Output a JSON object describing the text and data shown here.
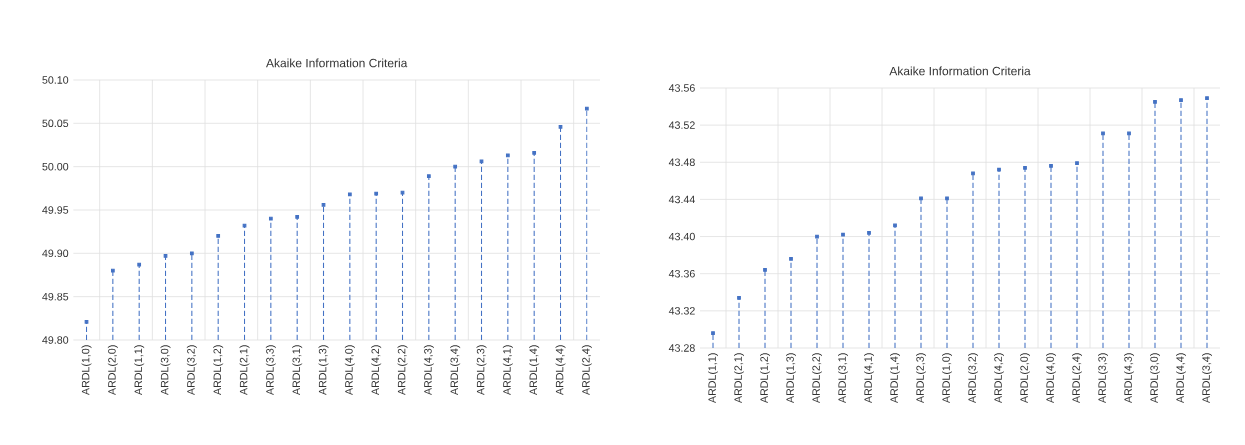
{
  "chart_data": [
    {
      "type": "lollipop",
      "title": "Akaike Information Criteria",
      "categories": [
        "ARDL(1,0)",
        "ARDL(2,0)",
        "ARDL(1,1)",
        "ARDL(3,0)",
        "ARDL(3,2)",
        "ARDL(1,2)",
        "ARDL(2,1)",
        "ARDL(3,3)",
        "ARDL(3,1)",
        "ARDL(1,3)",
        "ARDL(4,0)",
        "ARDL(4,2)",
        "ARDL(2,2)",
        "ARDL(4,3)",
        "ARDL(3,4)",
        "ARDL(2,3)",
        "ARDL(4,1)",
        "ARDL(1,4)",
        "ARDL(4,4)",
        "ARDL(2,4)"
      ],
      "values": [
        49.821,
        49.88,
        49.887,
        49.897,
        49.9,
        49.92,
        49.932,
        49.94,
        49.942,
        49.956,
        49.968,
        49.969,
        49.97,
        49.989,
        50.0,
        50.006,
        50.013,
        50.016,
        50.046,
        50.067
      ],
      "color": "#4472c4",
      "line_style": "dashed",
      "grid": true,
      "ylim": [
        49.8,
        50.1
      ],
      "yticks": [
        {
          "value": 49.8,
          "label": "49.80"
        },
        {
          "value": 49.85,
          "label": "49.85"
        },
        {
          "value": 49.9,
          "label": "49.90"
        },
        {
          "value": 49.95,
          "label": "49.95"
        },
        {
          "value": 50.0,
          "label": "50.00"
        },
        {
          "value": 50.05,
          "label": "50.05"
        },
        {
          "value": 50.1,
          "label": "50.10"
        }
      ]
    },
    {
      "type": "lollipop",
      "title": "Akaike Information Criteria",
      "categories": [
        "ARDL(1,1)",
        "ARDL(2,1)",
        "ARDL(1,2)",
        "ARDL(1,3)",
        "ARDL(2,2)",
        "ARDL(3,1)",
        "ARDL(4,1)",
        "ARDL(1,4)",
        "ARDL(2,3)",
        "ARDL(1,0)",
        "ARDL(3,2)",
        "ARDL(4,2)",
        "ARDL(2,0)",
        "ARDL(4,0)",
        "ARDL(2,4)",
        "ARDL(3,3)",
        "ARDL(4,3)",
        "ARDL(3,0)",
        "ARDL(4,4)",
        "ARDL(3,4)"
      ],
      "values": [
        43.296,
        43.334,
        43.364,
        43.376,
        43.4,
        43.402,
        43.404,
        43.412,
        43.441,
        43.441,
        43.468,
        43.472,
        43.474,
        43.476,
        43.479,
        43.511,
        43.511,
        43.545,
        43.547,
        43.549
      ],
      "color": "#4472c4",
      "line_style": "dashed",
      "grid": true,
      "ylim": [
        43.28,
        43.56
      ],
      "yticks": [
        {
          "value": 43.28,
          "label": "43.28"
        },
        {
          "value": 43.32,
          "label": "43.32"
        },
        {
          "value": 43.36,
          "label": "43.36"
        },
        {
          "value": 43.4,
          "label": "43.40"
        },
        {
          "value": 43.44,
          "label": "43.44"
        },
        {
          "value": 43.48,
          "label": "43.48"
        },
        {
          "value": 43.52,
          "label": "43.52"
        },
        {
          "value": 43.56,
          "label": "43.56"
        }
      ]
    }
  ]
}
